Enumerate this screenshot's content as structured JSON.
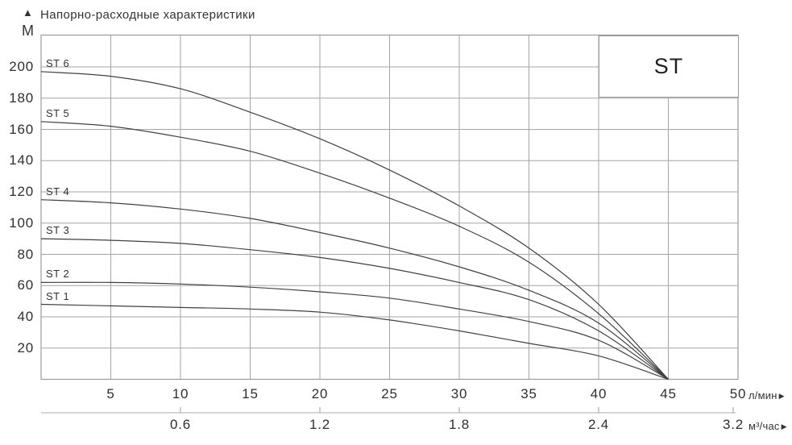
{
  "header": {
    "title": "Напорно-расходные характеристики",
    "y_unit": "М"
  },
  "legend": {
    "label": "ST"
  },
  "axes": {
    "y_ticks": [
      "200",
      "180",
      "160",
      "140",
      "120",
      "100",
      "80",
      "60",
      "40",
      "20"
    ],
    "x_primary_ticks": [
      "5",
      "10",
      "15",
      "20",
      "25",
      "30",
      "35",
      "40",
      "45",
      "50"
    ],
    "x_primary_unit": "л/мин",
    "x_secondary_ticks": [
      "0.6",
      "1.2",
      "1.8",
      "2.4",
      "3.2"
    ],
    "x_secondary_unit": "м³/час"
  },
  "chart_data": {
    "type": "line",
    "title": "Напорно-расходные характеристики",
    "ylabel": "М",
    "xlabel": "л/мин",
    "x2label": "м³/час",
    "x": [
      0,
      5,
      10,
      15,
      20,
      25,
      30,
      35,
      40,
      45
    ],
    "series": [
      {
        "name": "ST 6",
        "values": [
          197,
          194,
          186,
          171,
          154,
          134,
          111,
          84,
          48,
          0
        ]
      },
      {
        "name": "ST 5",
        "values": [
          165,
          162,
          155,
          146,
          132,
          116,
          98,
          75,
          42,
          0
        ]
      },
      {
        "name": "ST 4",
        "values": [
          115,
          113,
          109,
          103,
          94,
          84,
          72,
          57,
          36,
          0
        ]
      },
      {
        "name": "ST 3",
        "values": [
          90,
          89,
          87,
          83,
          78,
          71,
          62,
          51,
          31,
          0
        ]
      },
      {
        "name": "ST 2",
        "values": [
          62,
          62,
          61,
          59,
          56,
          52,
          45,
          37,
          25,
          0
        ]
      },
      {
        "name": "ST 1",
        "values": [
          48,
          47,
          46,
          45,
          43,
          38,
          31,
          23,
          15,
          0
        ]
      }
    ],
    "xlim": [
      0,
      50
    ],
    "ylim": [
      0,
      220
    ],
    "x_gridline_step": 5,
    "y_gridline_step": 20,
    "grid": true,
    "legend_position": "top-right",
    "secondary_x_axis": {
      "unit": "м³/час",
      "tick_labels": [
        "0.6",
        "1.2",
        "1.8",
        "2.4",
        "3.2"
      ],
      "tick_positions_in_lmin": [
        10,
        20,
        30,
        40,
        50
      ]
    }
  },
  "colors": {
    "grid": "#a5a5a5",
    "border": "#9b9b9b",
    "curve": "#404040",
    "secondary_axis_line": "#bcbcbc",
    "text": "#333333"
  }
}
